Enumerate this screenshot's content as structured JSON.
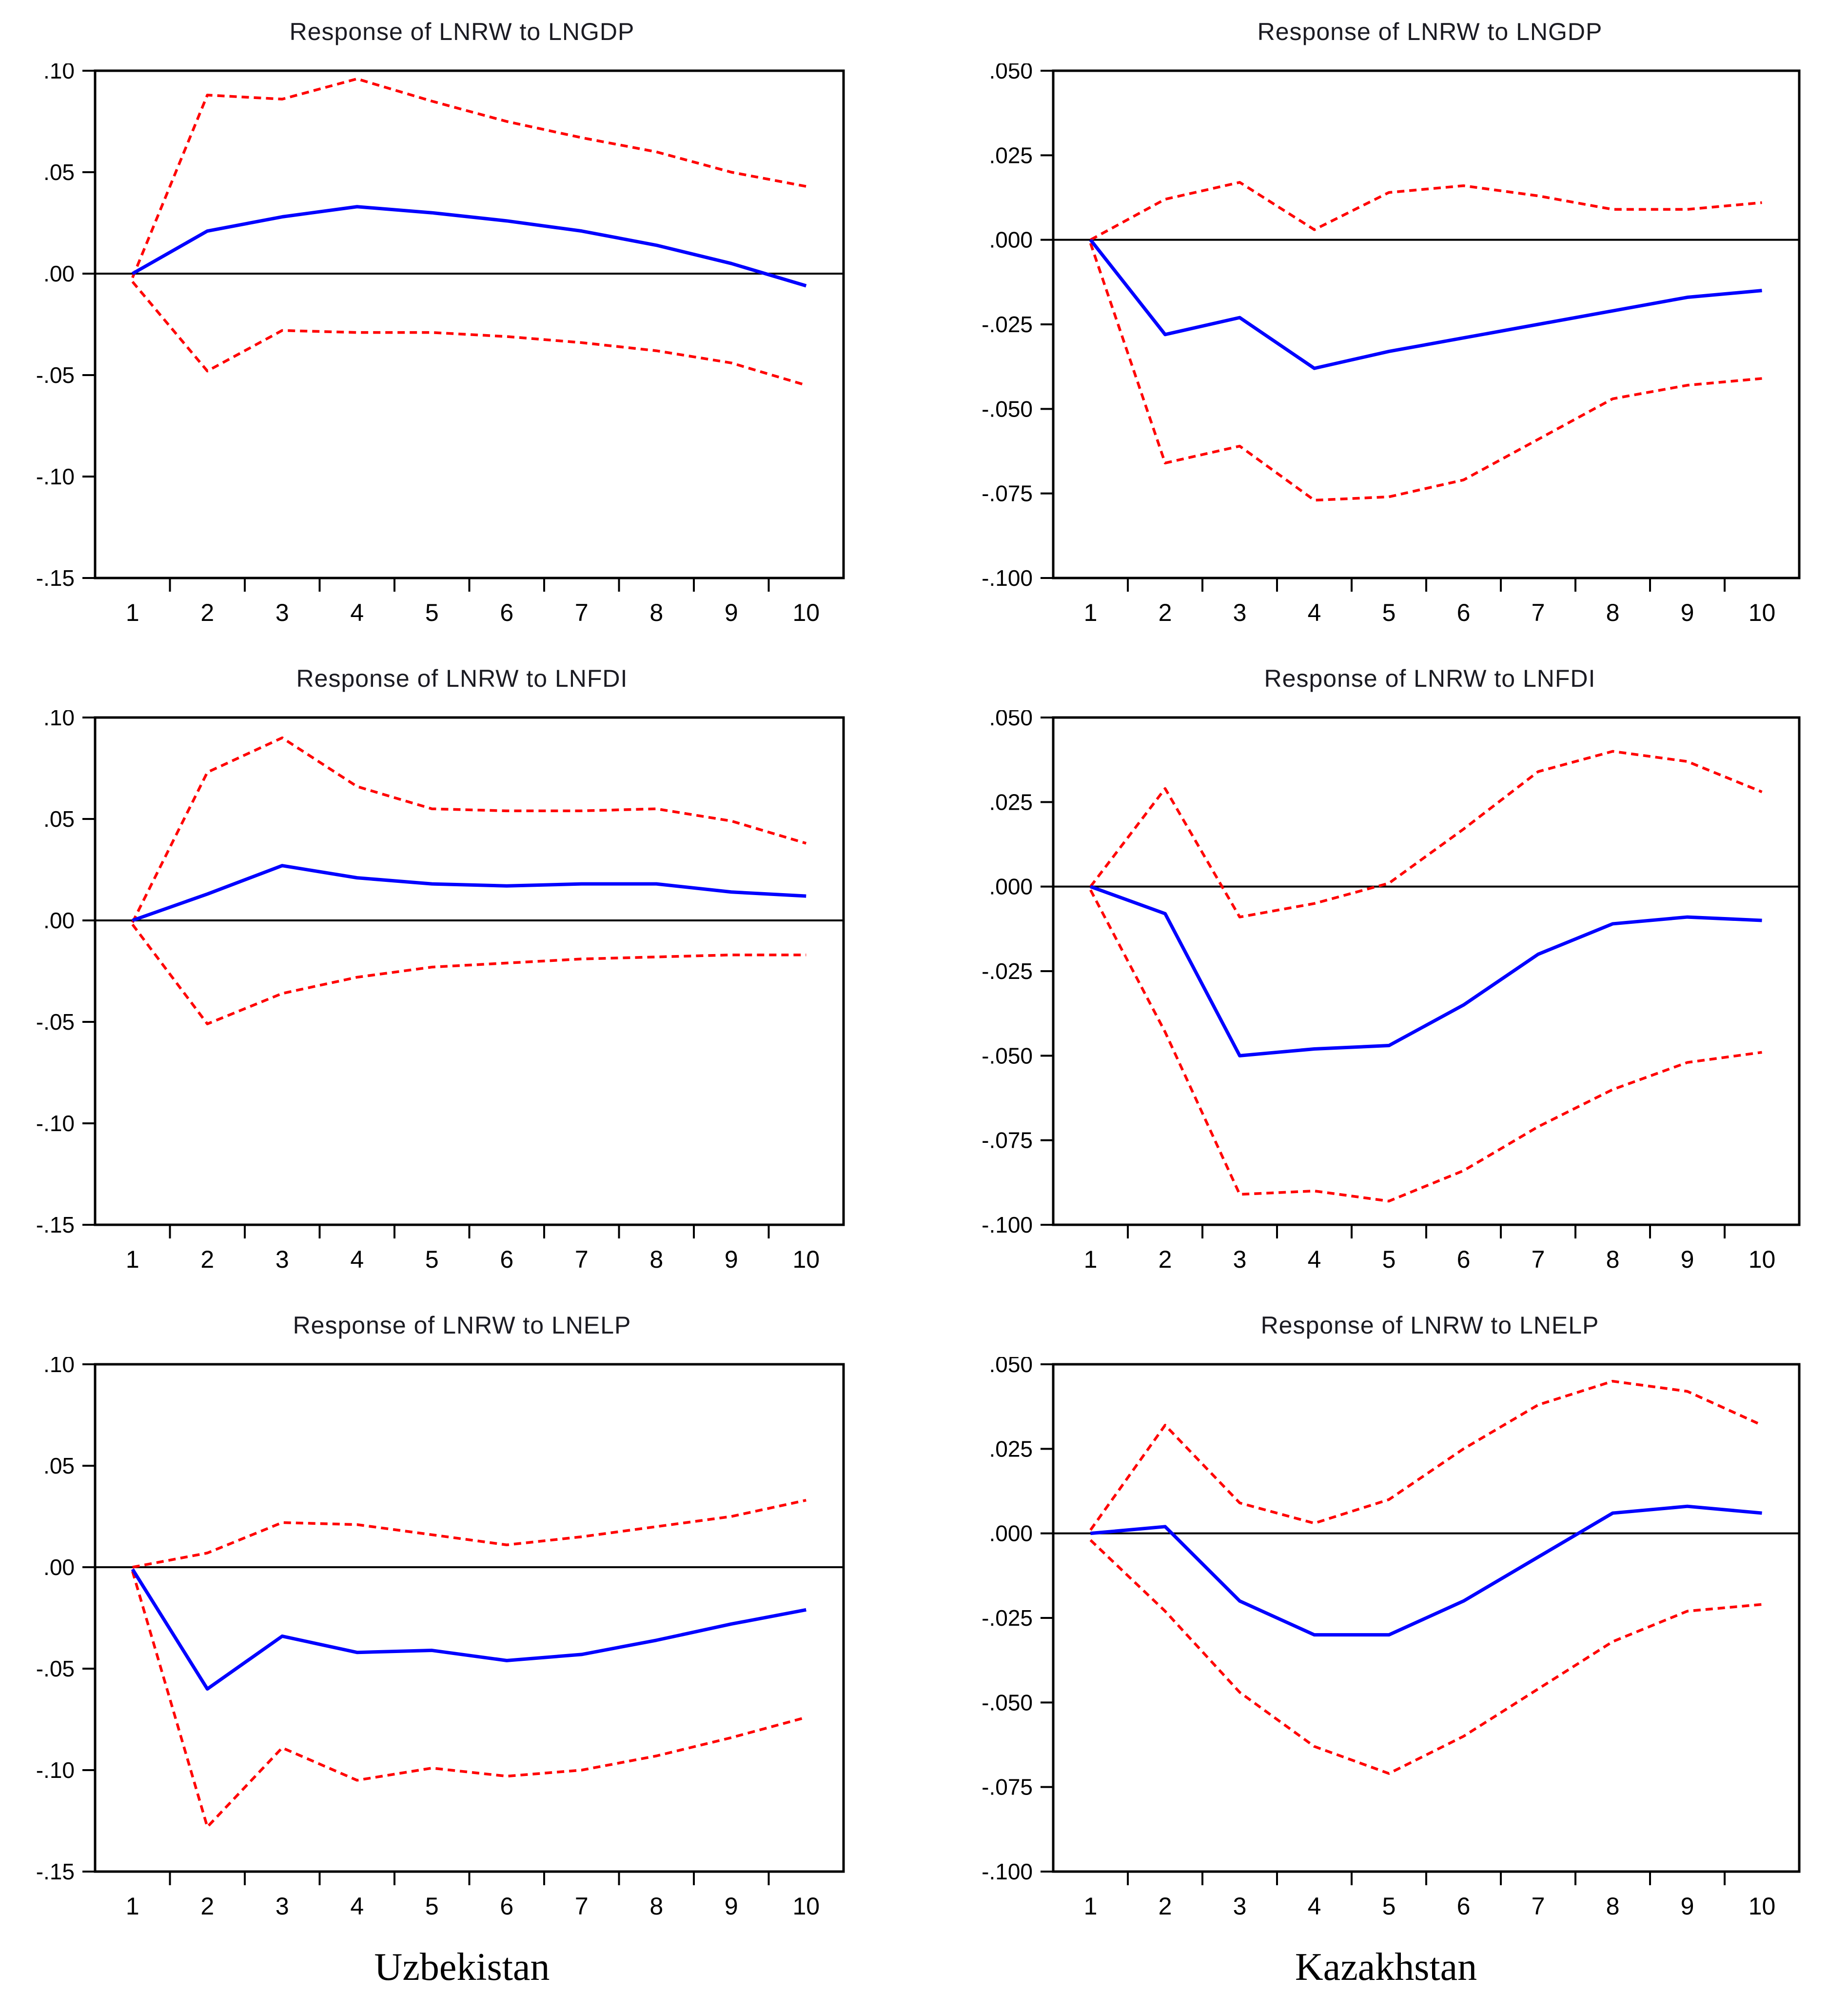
{
  "columns": [
    {
      "caption": "Uzbekistan"
    },
    {
      "caption": "Kazakhstan"
    }
  ],
  "colors": {
    "response": "#0000ff",
    "band": "#ff0000",
    "axis": "#000000",
    "title": "#1b1b22"
  },
  "chart_data": [
    {
      "type": "line",
      "title": "Response of LNRW to LNGDP",
      "country": "Uzbekistan",
      "x": [
        1,
        2,
        3,
        4,
        5,
        6,
        7,
        8,
        9,
        10
      ],
      "xlim": [
        0.5,
        10.5
      ],
      "ylim": [
        -0.15,
        0.1
      ],
      "ytick_values": [
        0.1,
        0.05,
        0.0,
        -0.05,
        -0.1,
        -0.15
      ],
      "ytick_labels": [
        ".10",
        ".05",
        ".00",
        "-.05",
        "-.10",
        "-.15"
      ],
      "grid": false,
      "legend": "none",
      "series": [
        {
          "name": "response",
          "color": "#0000ff",
          "style": "solid",
          "values": [
            0.0,
            0.021,
            0.028,
            0.033,
            0.03,
            0.026,
            0.021,
            0.014,
            0.005,
            -0.006
          ]
        },
        {
          "name": "upper_band",
          "color": "#ff0000",
          "style": "dashed",
          "values": [
            -0.002,
            0.088,
            0.086,
            0.096,
            0.085,
            0.075,
            0.067,
            0.06,
            0.05,
            0.043
          ]
        },
        {
          "name": "lower_band",
          "color": "#ff0000",
          "style": "dashed",
          "values": [
            -0.004,
            -0.048,
            -0.028,
            -0.029,
            -0.029,
            -0.031,
            -0.034,
            -0.038,
            -0.044,
            -0.055
          ]
        }
      ]
    },
    {
      "type": "line",
      "title": "Response of LNRW to LNGDP",
      "country": "Kazakhstan",
      "x": [
        1,
        2,
        3,
        4,
        5,
        6,
        7,
        8,
        9,
        10
      ],
      "xlim": [
        0.5,
        10.5
      ],
      "ylim": [
        -0.1,
        0.05
      ],
      "ytick_values": [
        0.05,
        0.025,
        0.0,
        -0.025,
        -0.05,
        -0.075,
        -0.1
      ],
      "ytick_labels": [
        ".050",
        ".025",
        ".000",
        "-.025",
        "-.050",
        "-.075",
        "-.100"
      ],
      "grid": false,
      "legend": "none",
      "series": [
        {
          "name": "response",
          "color": "#0000ff",
          "style": "solid",
          "values": [
            0.0,
            -0.028,
            -0.023,
            -0.038,
            -0.033,
            -0.029,
            -0.025,
            -0.021,
            -0.017,
            -0.015
          ]
        },
        {
          "name": "upper_band",
          "color": "#ff0000",
          "style": "dashed",
          "values": [
            0.0,
            0.012,
            0.017,
            0.003,
            0.014,
            0.016,
            0.013,
            0.009,
            0.009,
            0.011
          ]
        },
        {
          "name": "lower_band",
          "color": "#ff0000",
          "style": "dashed",
          "values": [
            -0.001,
            -0.066,
            -0.061,
            -0.077,
            -0.076,
            -0.071,
            -0.059,
            -0.047,
            -0.043,
            -0.041
          ]
        }
      ]
    },
    {
      "type": "line",
      "title": "Response of LNRW to LNFDI",
      "country": "Uzbekistan",
      "x": [
        1,
        2,
        3,
        4,
        5,
        6,
        7,
        8,
        9,
        10
      ],
      "xlim": [
        0.5,
        10.5
      ],
      "ylim": [
        -0.15,
        0.1
      ],
      "ytick_values": [
        0.1,
        0.05,
        0.0,
        -0.05,
        -0.1,
        -0.15
      ],
      "ytick_labels": [
        ".10",
        ".05",
        ".00",
        "-.05",
        "-.10",
        "-.15"
      ],
      "grid": false,
      "legend": "none",
      "series": [
        {
          "name": "response",
          "color": "#0000ff",
          "style": "solid",
          "values": [
            0.0,
            0.013,
            0.027,
            0.021,
            0.018,
            0.017,
            0.018,
            0.018,
            0.014,
            0.012
          ]
        },
        {
          "name": "upper_band",
          "color": "#ff0000",
          "style": "dashed",
          "values": [
            -0.001,
            0.073,
            0.09,
            0.066,
            0.055,
            0.054,
            0.054,
            0.055,
            0.049,
            0.038
          ]
        },
        {
          "name": "lower_band",
          "color": "#ff0000",
          "style": "dashed",
          "values": [
            -0.002,
            -0.051,
            -0.036,
            -0.028,
            -0.023,
            -0.021,
            -0.019,
            -0.018,
            -0.017,
            -0.017
          ]
        }
      ]
    },
    {
      "type": "line",
      "title": "Response of LNRW to LNFDI",
      "country": "Kazakhstan",
      "x": [
        1,
        2,
        3,
        4,
        5,
        6,
        7,
        8,
        9,
        10
      ],
      "xlim": [
        0.5,
        10.5
      ],
      "ylim": [
        -0.1,
        0.05
      ],
      "ytick_values": [
        0.05,
        0.025,
        0.0,
        -0.025,
        -0.05,
        -0.075,
        -0.1
      ],
      "ytick_labels": [
        ".050",
        ".025",
        ".000",
        "-.025",
        "-.050",
        "-.075",
        "-.100"
      ],
      "grid": false,
      "legend": "none",
      "series": [
        {
          "name": "response",
          "color": "#0000ff",
          "style": "solid",
          "values": [
            0.0,
            -0.008,
            -0.05,
            -0.048,
            -0.047,
            -0.035,
            -0.02,
            -0.011,
            -0.009,
            -0.01
          ]
        },
        {
          "name": "upper_band",
          "color": "#ff0000",
          "style": "dashed",
          "values": [
            0.0,
            0.029,
            -0.009,
            -0.005,
            0.001,
            0.017,
            0.034,
            0.04,
            0.037,
            0.028
          ]
        },
        {
          "name": "lower_band",
          "color": "#ff0000",
          "style": "dashed",
          "values": [
            -0.001,
            -0.043,
            -0.091,
            -0.09,
            -0.093,
            -0.084,
            -0.071,
            -0.06,
            -0.052,
            -0.049
          ]
        }
      ]
    },
    {
      "type": "line",
      "title": "Response of LNRW to LNELP",
      "country": "Uzbekistan",
      "x": [
        1,
        2,
        3,
        4,
        5,
        6,
        7,
        8,
        9,
        10
      ],
      "xlim": [
        0.5,
        10.5
      ],
      "ylim": [
        -0.15,
        0.1
      ],
      "ytick_values": [
        0.1,
        0.05,
        0.0,
        -0.05,
        -0.1,
        -0.15
      ],
      "ytick_labels": [
        ".10",
        ".05",
        ".00",
        "-.05",
        "-.10",
        "-.15"
      ],
      "grid": false,
      "legend": "none",
      "series": [
        {
          "name": "response",
          "color": "#0000ff",
          "style": "solid",
          "values": [
            -0.001,
            -0.06,
            -0.034,
            -0.042,
            -0.041,
            -0.046,
            -0.043,
            -0.036,
            -0.028,
            -0.021
          ]
        },
        {
          "name": "upper_band",
          "color": "#ff0000",
          "style": "dashed",
          "values": [
            0.0,
            0.007,
            0.022,
            0.021,
            0.016,
            0.011,
            0.015,
            0.02,
            0.025,
            0.033
          ]
        },
        {
          "name": "lower_band",
          "color": "#ff0000",
          "style": "dashed",
          "values": [
            -0.002,
            -0.128,
            -0.089,
            -0.105,
            -0.099,
            -0.103,
            -0.1,
            -0.093,
            -0.084,
            -0.074
          ]
        }
      ]
    },
    {
      "type": "line",
      "title": "Response of LNRW to LNELP",
      "country": "Kazakhstan",
      "x": [
        1,
        2,
        3,
        4,
        5,
        6,
        7,
        8,
        9,
        10
      ],
      "xlim": [
        0.5,
        10.5
      ],
      "ylim": [
        -0.1,
        0.05
      ],
      "ytick_values": [
        0.05,
        0.025,
        0.0,
        -0.025,
        -0.05,
        -0.075,
        -0.1
      ],
      "ytick_labels": [
        ".050",
        ".025",
        ".000",
        "-.025",
        "-.050",
        "-.075",
        "-.100"
      ],
      "grid": false,
      "legend": "none",
      "series": [
        {
          "name": "response",
          "color": "#0000ff",
          "style": "solid",
          "values": [
            0.0,
            0.002,
            -0.02,
            -0.03,
            -0.03,
            -0.02,
            -0.007,
            0.006,
            0.008,
            0.006
          ]
        },
        {
          "name": "upper_band",
          "color": "#ff0000",
          "style": "dashed",
          "values": [
            0.001,
            0.032,
            0.009,
            0.003,
            0.01,
            0.025,
            0.038,
            0.045,
            0.042,
            0.032
          ]
        },
        {
          "name": "lower_band",
          "color": "#ff0000",
          "style": "dashed",
          "values": [
            -0.002,
            -0.023,
            -0.047,
            -0.063,
            -0.071,
            -0.06,
            -0.046,
            -0.032,
            -0.023,
            -0.021
          ]
        }
      ]
    }
  ]
}
